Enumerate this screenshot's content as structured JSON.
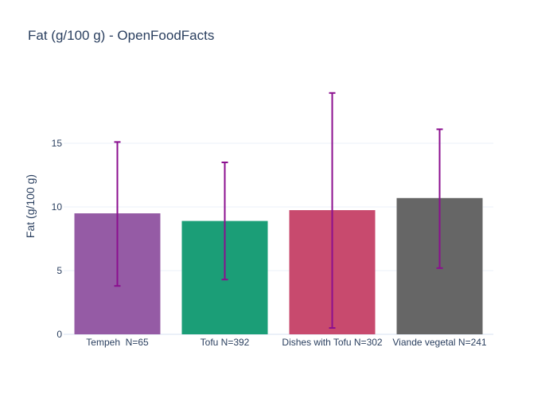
{
  "chart_data": {
    "type": "bar",
    "title": "Fat (g/100 g) - OpenFoodFacts",
    "xlabel": "",
    "ylabel": "Fat (g/100 g)",
    "ylim": [
      0,
      20
    ],
    "yticks": [
      0,
      5,
      10,
      15
    ],
    "grid": true,
    "categories": [
      "Tempeh  N=65",
      "Tofu N=392",
      "Dishes with Tofu N=302",
      "Viande vegetal N=241"
    ],
    "values": [
      9.5,
      8.9,
      9.75,
      10.7
    ],
    "error_low": [
      3.8,
      4.3,
      0.5,
      5.2
    ],
    "error_high": [
      15.1,
      13.5,
      18.95,
      16.1
    ],
    "colors": [
      "#955ba5",
      "#1b9e77",
      "#c84a6e",
      "#666666"
    ],
    "error_color": "#8b0f8f"
  }
}
